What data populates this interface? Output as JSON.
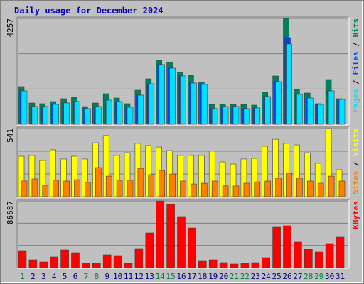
{
  "title": "Daily usage for December 2024",
  "legend_separator": " / ",
  "chart_data": [
    {
      "type": "bar",
      "ylim": [
        0,
        4257
      ],
      "yticks": [
        4257
      ],
      "grid_divisions": 3,
      "series": [
        {
          "name": "Hits",
          "color": "#00805c",
          "values": [
            1514,
            857,
            829,
            914,
            1029,
            1086,
            714,
            857,
            1229,
            1057,
            829,
            1371,
            1829,
            2571,
            2486,
            2086,
            1971,
            1686,
            800,
            800,
            800,
            800,
            771,
            1286,
            1943,
            4257,
            1400,
            1257,
            829,
            1800,
            1029
          ]
        },
        {
          "name": "Files",
          "color": "#0040ff",
          "values": [
            1343,
            714,
            714,
            800,
            857,
            914,
            629,
            714,
            971,
            914,
            686,
            1171,
            1629,
            2400,
            2257,
            1943,
            1657,
            1600,
            629,
            714,
            714,
            629,
            657,
            1114,
            1714,
            3486,
            1200,
            1057,
            800,
            1343,
            1000
          ]
        },
        {
          "name": "Pages",
          "color": "#00e0ff",
          "values": [
            1343,
            714,
            714,
            800,
            857,
            914,
            629,
            714,
            971,
            914,
            686,
            1171,
            1629,
            2400,
            2257,
            1943,
            1657,
            1600,
            629,
            714,
            714,
            629,
            657,
            1114,
            1714,
            3229,
            1200,
            1057,
            800,
            1343,
            1000
          ]
        }
      ]
    },
    {
      "type": "bar",
      "ylim": [
        0,
        541
      ],
      "yticks": [
        541
      ],
      "grid_divisions": 3,
      "series": [
        {
          "name": "Visits",
          "color": "#ffff00",
          "values": [
            321,
            327,
            287,
            372,
            299,
            321,
            299,
            428,
            485,
            327,
            349,
            423,
            406,
            394,
            366,
            327,
            327,
            327,
            361,
            276,
            259,
            299,
            304,
            400,
            456,
            423,
            411,
            349,
            265,
            541,
            214
          ]
        },
        {
          "name": "Sites",
          "color": "#ff8000",
          "values": [
            124,
            141,
            90,
            130,
            124,
            135,
            113,
            231,
            163,
            130,
            130,
            225,
            175,
            208,
            180,
            124,
            101,
            107,
            124,
            85,
            85,
            107,
            118,
            124,
            147,
            186,
            147,
            124,
            107,
            163,
            124
          ]
        }
      ]
    },
    {
      "type": "bar",
      "ylim": [
        0,
        86687
      ],
      "yticks": [
        86687
      ],
      "grid_divisions": 3,
      "categories": [
        "1",
        "2",
        "3",
        "4",
        "5",
        "6",
        "7",
        "8",
        "9",
        "10",
        "11",
        "12",
        "13",
        "14",
        "15",
        "16",
        "17",
        "18",
        "19",
        "20",
        "21",
        "22",
        "23",
        "24",
        "25",
        "26",
        "27",
        "28",
        "29",
        "30",
        "31"
      ],
      "highlight_indices": [
        0,
        6,
        7,
        13,
        14,
        20,
        21,
        27,
        28
      ],
      "highlight_color": "#008040",
      "category_color": "#000080",
      "series": [
        {
          "name": "KBytes",
          "color": "#ff0000",
          "values": [
            22130,
            10140,
            7380,
            13830,
            23050,
            19360,
            5530,
            5530,
            16600,
            15670,
            5530,
            24890,
            45180,
            86687,
            82060,
            66390,
            51630,
            9220,
            10140,
            6450,
            4610,
            5530,
            6450,
            12910,
            52560,
            54400,
            33190,
            23970,
            20280,
            31350,
            39650
          ]
        }
      ]
    }
  ]
}
